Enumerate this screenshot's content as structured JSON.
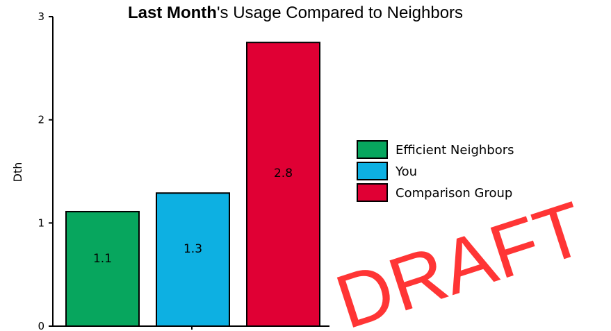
{
  "chart_data": {
    "type": "bar",
    "title_bold": "Last Month",
    "title_rest": "'s Usage Compared to Neighbors",
    "ylabel": "Dth",
    "xlabel": "",
    "ylim": [
      0,
      3
    ],
    "yticks": [
      0,
      1,
      2,
      3
    ],
    "categories": [
      "Efficient Neighbors",
      "You",
      "Comparison Group"
    ],
    "values": [
      1.11,
      1.29,
      2.75
    ],
    "data_labels": [
      "1.1",
      "1.3",
      "2.8"
    ],
    "colors": [
      "#07a65e",
      "#0db0e2",
      "#e00034"
    ],
    "legend": {
      "position": "right",
      "entries": [
        "Efficient Neighbors",
        "You",
        "Comparison Group"
      ]
    },
    "grid": false
  },
  "watermark": "DRAFT"
}
